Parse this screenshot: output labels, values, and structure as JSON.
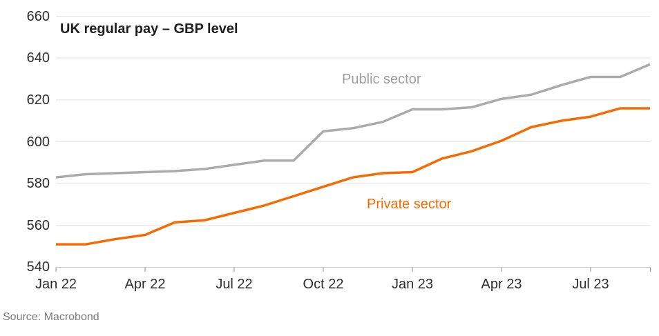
{
  "chart_data": {
    "type": "line",
    "title": "UK regular pay – GBP level",
    "xlabel": "",
    "ylabel": "",
    "ylim": [
      540,
      660
    ],
    "grid": true,
    "legend_position": "inline-annotations",
    "y_tick_labels": [
      "660",
      "640",
      "620",
      "600",
      "580",
      "560",
      "540"
    ],
    "x_tick_labels": [
      "Jan 22",
      "Apr 22",
      "Jul 22",
      "Oct 22",
      "Jan 23",
      "Apr 23",
      "Jul 23"
    ],
    "months": [
      "Jan 22",
      "Feb 22",
      "Mar 22",
      "Apr 22",
      "May 22",
      "Jun 22",
      "Jul 22",
      "Aug 22",
      "Sep 22",
      "Oct 22",
      "Nov 22",
      "Dec 22",
      "Jan 23",
      "Feb 23",
      "Mar 23",
      "Apr 23",
      "May 23",
      "Jun 23",
      "Jul 23",
      "Aug 23",
      "Sep 23"
    ],
    "series": [
      {
        "name": "Public sector",
        "color": "#ABABAB",
        "label_color": "#9E9E9E",
        "values": [
          583,
          584.5,
          585,
          585.5,
          586,
          587,
          589,
          591,
          591,
          605,
          606.5,
          609.5,
          615.5,
          615.5,
          616.5,
          620.5,
          622.5,
          627,
          631,
          631,
          637
        ]
      },
      {
        "name": "Private sector",
        "color": "#F76A00",
        "label_color": "#F76A00",
        "values": [
          551,
          551,
          553.5,
          555.5,
          561.5,
          562.5,
          566,
          569.5,
          574,
          578.5,
          583,
          585,
          585.5,
          592,
          595.5,
          600.5,
          607,
          610,
          612,
          616,
          616
        ]
      }
    ],
    "colors": {
      "grid": "#E2E2E2",
      "axis": "#C8C8C8",
      "tick": "#909090"
    }
  },
  "source_note": "Source: Macrobond"
}
